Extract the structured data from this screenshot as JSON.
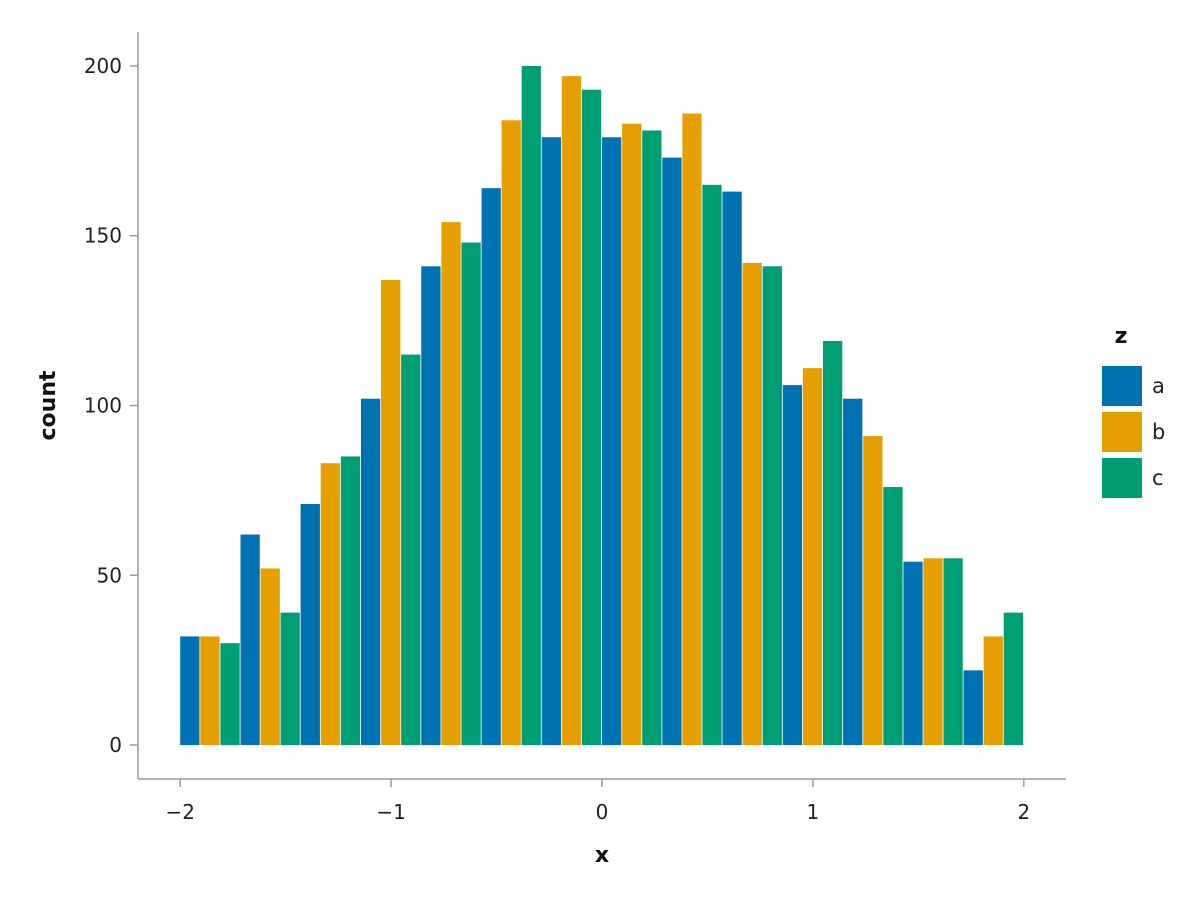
{
  "chart_data": {
    "type": "bar",
    "title": "",
    "xlabel": "x",
    "ylabel": "count",
    "xlim": [
      -2.2,
      2.2
    ],
    "ylim": [
      -10,
      210
    ],
    "xticks": [
      -2,
      -1,
      0,
      1,
      2
    ],
    "xtick_labels": [
      "−2",
      "−1",
      "0",
      "1",
      "2"
    ],
    "yticks": [
      0,
      50,
      100,
      150,
      200
    ],
    "ytick_labels": [
      "0",
      "50",
      "100",
      "150",
      "200"
    ],
    "bin_edges": [
      -2.0,
      -1.714,
      -1.429,
      -1.143,
      -0.857,
      -0.571,
      -0.286,
      0.0,
      0.286,
      0.571,
      0.857,
      1.143,
      1.429,
      1.714,
      2.0
    ],
    "grid": false,
    "legend": {
      "title": "z",
      "position": "right",
      "entries": [
        "a",
        "b",
        "c"
      ]
    },
    "series": [
      {
        "name": "a",
        "color": "#0072b2",
        "values": [
          32,
          62,
          71,
          102,
          141,
          164,
          179,
          179,
          173,
          163,
          106,
          102,
          54,
          22
        ]
      },
      {
        "name": "b",
        "color": "#e69f00",
        "values": [
          32,
          52,
          83,
          137,
          154,
          184,
          197,
          183,
          186,
          142,
          111,
          91,
          55,
          32
        ]
      },
      {
        "name": "c",
        "color": "#009e73",
        "values": [
          30,
          39,
          85,
          115,
          148,
          200,
          193,
          181,
          165,
          141,
          119,
          76,
          55,
          39
        ]
      }
    ]
  }
}
